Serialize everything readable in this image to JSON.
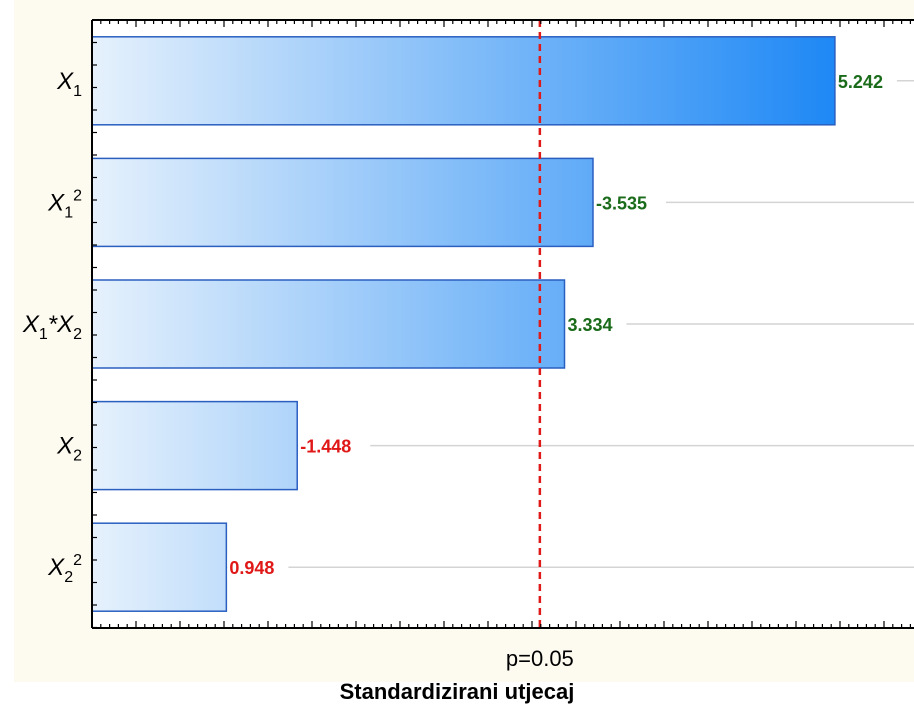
{
  "chart_data": {
    "type": "bar",
    "orientation": "horizontal",
    "title": "",
    "xlabel": "Standardizirani utjecaj",
    "ylabel": "",
    "categories": [
      {
        "base": "X",
        "sub": "1",
        "sup": "",
        "rest": ""
      },
      {
        "base": "X",
        "sub": "1",
        "sup": "2",
        "rest": ""
      },
      {
        "base": "X",
        "sub": "1",
        "sup": "",
        "rest": "*X",
        "sub2": "2"
      },
      {
        "base": "X",
        "sub": "2",
        "sup": "",
        "rest": ""
      },
      {
        "base": "X",
        "sub": "2",
        "sup": "2",
        "rest": ""
      }
    ],
    "values": [
      5.242,
      3.535,
      3.334,
      1.448,
      0.948
    ],
    "value_labels": [
      "5.242",
      "-3.535",
      "3.334",
      "-1.448",
      "0.948"
    ],
    "significant_label_color": "#1a6b1a",
    "nonsignificant_label_color": "#e01818",
    "significant": [
      true,
      true,
      true,
      false,
      false
    ],
    "xlim": [
      0,
      5.8
    ],
    "reference_line": {
      "value": 3.16,
      "label": "p=0.05",
      "color": "#e01818",
      "style": "dashed"
    },
    "bar_gradient": [
      "#e6f1fc",
      "#1e88f5"
    ],
    "bar_border_color": "#2a5fc0",
    "gridlines": "horizontal"
  }
}
